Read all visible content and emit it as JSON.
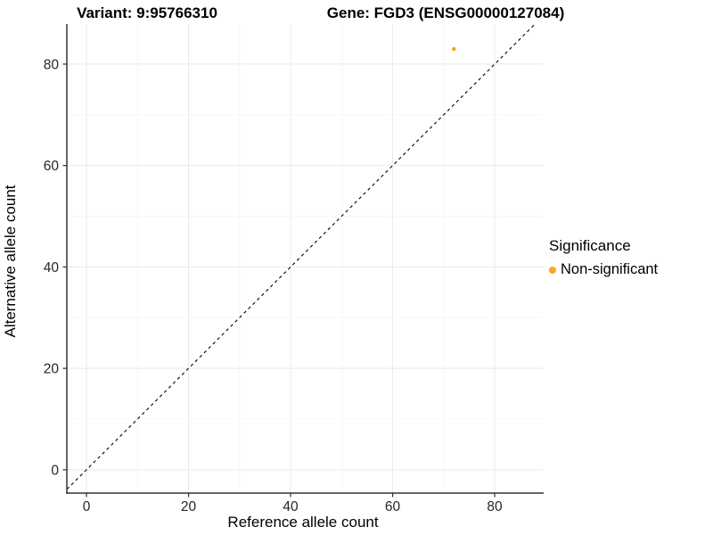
{
  "titles": {
    "left": "Variant: 9:95766310",
    "right": "Gene: FGD3 (ENSG00000127084)"
  },
  "legend": {
    "title": "Significance",
    "items": [
      {
        "label": "Non-significant",
        "color": "#FDA428"
      }
    ]
  },
  "chart_data": {
    "type": "scatter",
    "title": "Variant: 9:95766310 / Gene: FGD3 (ENSG00000127084)",
    "xlabel": "Reference allele count",
    "ylabel": "Alternative allele count",
    "xlim": [
      -3.85,
      89.6
    ],
    "ylim": [
      -4.6,
      87.9
    ],
    "x_ticks": [
      0,
      20,
      40,
      60,
      80
    ],
    "y_ticks": [
      0,
      20,
      40,
      60,
      80
    ],
    "x_minor_ticks": [
      10,
      30,
      50,
      70
    ],
    "y_minor_ticks": [
      10,
      30,
      50,
      70
    ],
    "grid": true,
    "legend_position": "right",
    "series": [
      {
        "name": "Non-significant",
        "color": "#FDA428",
        "points": [
          {
            "x": 72,
            "y": 83
          }
        ]
      }
    ],
    "reference_line": {
      "type": "identity y = x",
      "style": "dashed",
      "color": "#000000"
    }
  },
  "style": {
    "major_grid_color": "#e9e9e9",
    "minor_grid_color": "#f4f4f4",
    "axis_line_color": "#333333",
    "tick_color": "#333333",
    "tick_label_color": "#262626",
    "background": "#ffffff"
  }
}
